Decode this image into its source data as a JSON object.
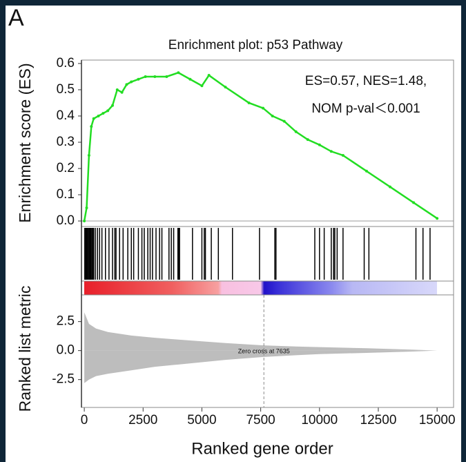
{
  "chart_data": {
    "type": "line",
    "panel_label": "A",
    "title": "Enrichment plot: p53 Pathway",
    "ylabel": "Enrichment score (ES)",
    "y2label": "Ranked list metric",
    "xlabel": "Ranked gene order",
    "annotations": [
      "ES=0.57, NES=1.48,",
      "NOM p-val＜0.001"
    ],
    "color": "#22dd22",
    "x": [
      0,
      100,
      200,
      300,
      400,
      600,
      800,
      1000,
      1200,
      1400,
      1600,
      1800,
      2000,
      2300,
      2600,
      3000,
      3500,
      4000,
      4500,
      5000,
      5300,
      6000,
      7000,
      7600,
      8000,
      8500,
      9000,
      9500,
      10000,
      10500,
      11000,
      12000,
      13000,
      14000,
      15000
    ],
    "values": [
      0,
      0.05,
      0.25,
      0.36,
      0.39,
      0.4,
      0.41,
      0.42,
      0.44,
      0.5,
      0.49,
      0.52,
      0.53,
      0.54,
      0.55,
      0.55,
      0.55,
      0.565,
      0.54,
      0.515,
      0.555,
      0.51,
      0.45,
      0.43,
      0.4,
      0.38,
      0.34,
      0.31,
      0.29,
      0.265,
      0.25,
      0.19,
      0.13,
      0.07,
      0.01
    ],
    "hits": [
      20,
      60,
      90,
      120,
      160,
      200,
      240,
      280,
      320,
      360,
      400,
      470,
      560,
      650,
      750,
      900,
      1050,
      1200,
      1300,
      1350,
      1500,
      1650,
      1850,
      2000,
      2100,
      2300,
      2450,
      2550,
      2700,
      2800,
      2900,
      3050,
      3200,
      3300,
      3600,
      3700,
      3800,
      3980,
      4020,
      4050,
      4600,
      5000,
      5100,
      5150,
      5400,
      5700,
      6300,
      7450,
      8100,
      8150,
      9800,
      10000,
      10200,
      10500,
      10600,
      10650,
      10750,
      11000,
      11900,
      12100,
      14100,
      14400,
      14700
    ],
    "metric": {
      "color": "#bdbdbd",
      "x": [
        0,
        200,
        500,
        1000,
        2000,
        3000,
        4000,
        5000,
        6000,
        7635,
        9000,
        10000,
        12000,
        14000,
        15000
      ],
      "upper": [
        3.3,
        2.3,
        1.9,
        1.6,
        1.3,
        1.1,
        0.95,
        0.8,
        0.65,
        0.45,
        0.35,
        0.3,
        0.2,
        0.08,
        0
      ],
      "lower": [
        -2.8,
        -2.5,
        -2.2,
        -2.0,
        -1.7,
        -1.4,
        -1.2,
        -1.0,
        -0.8,
        -0.55,
        -0.4,
        -0.3,
        -0.2,
        -0.08,
        0
      ]
    },
    "zero_cross": 7635,
    "zero_cross_label": "Zero cross at 7635",
    "xlim": [
      -120,
      15700
    ],
    "xticks": [
      0,
      2500,
      5000,
      7500,
      10000,
      12500,
      15000
    ],
    "ylim": [
      -0.021,
      0.613
    ],
    "yticks": [
      {
        "value": 0,
        "label": "0.0"
      },
      0.1,
      0.2,
      0.3,
      0.4,
      0.5,
      0.6
    ],
    "y2lim": [
      -4.9,
      4.8
    ],
    "y2ticks": [
      2.5,
      {
        "value": 0,
        "label": "0.0"
      },
      -2.5
    ]
  }
}
